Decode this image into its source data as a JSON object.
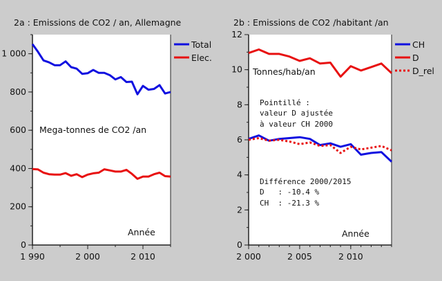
{
  "chart_data": [
    {
      "type": "line",
      "title": "2a : Emissions de CO2 / an, Allemagne",
      "ylabel": "Mega-tonnes de CO2 /an",
      "xlabel": "Année",
      "xlim": [
        1990,
        2015
      ],
      "ylim": [
        0,
        1100
      ],
      "xticks": [
        1990,
        2000,
        2010
      ],
      "xtick_labels": [
        "1 990",
        "2 000",
        "2 010"
      ],
      "yticks": [
        0,
        200,
        400,
        600,
        800,
        1000
      ],
      "ytick_labels": [
        "0",
        "200",
        "400",
        "600",
        "800",
        "1 000"
      ],
      "legend": "outside-right",
      "grid": false,
      "x": [
        1990,
        1991,
        1992,
        1993,
        1994,
        1995,
        1996,
        1997,
        1998,
        1999,
        2000,
        2001,
        2002,
        2003,
        2004,
        2005,
        2006,
        2007,
        2008,
        2009,
        2010,
        2011,
        2012,
        2013,
        2014,
        2015
      ],
      "series": [
        {
          "name": "Total",
          "color": "#1010e0",
          "style": "solid",
          "values": [
            1050,
            1010,
            965,
            955,
            940,
            940,
            960,
            930,
            922,
            895,
            898,
            915,
            900,
            900,
            888,
            866,
            878,
            852,
            854,
            788,
            832,
            812,
            816,
            836,
            792,
            800
          ]
        },
        {
          "name": "Elec.",
          "color": "#e81010",
          "style": "solid",
          "values": [
            397,
            395,
            378,
            370,
            368,
            368,
            376,
            362,
            370,
            355,
            368,
            375,
            378,
            396,
            390,
            384,
            384,
            393,
            372,
            346,
            358,
            358,
            370,
            378,
            360,
            358
          ]
        }
      ],
      "annotations": []
    },
    {
      "type": "line",
      "title": "2b : Emissions de CO2 /habitant /an",
      "ylabel": "Tonnes/hab/an",
      "xlabel": "Année",
      "xlim": [
        2000,
        2014
      ],
      "ylim": [
        0,
        12
      ],
      "xticks": [
        2000,
        2005,
        2010
      ],
      "xtick_labels": [
        "2 000",
        "2 005",
        "2 010"
      ],
      "yticks": [
        0,
        2,
        4,
        6,
        8,
        10,
        12
      ],
      "ytick_labels": [
        "0",
        "2",
        "4",
        "6",
        "8",
        "10",
        "12"
      ],
      "legend": "outside-right",
      "grid": false,
      "x": [
        2000,
        2001,
        2002,
        2003,
        2004,
        2005,
        2006,
        2007,
        2008,
        2009,
        2010,
        2011,
        2012,
        2013,
        2014
      ],
      "series": [
        {
          "name": "CH",
          "color": "#1010e0",
          "style": "solid",
          "values": [
            6.05,
            6.25,
            5.95,
            6.05,
            6.1,
            6.15,
            6.05,
            5.7,
            5.8,
            5.6,
            5.75,
            5.15,
            5.25,
            5.3,
            4.75
          ]
        },
        {
          "name": "D",
          "color": "#e81010",
          "style": "solid",
          "values": [
            10.95,
            11.15,
            10.9,
            10.9,
            10.75,
            10.5,
            10.65,
            10.35,
            10.4,
            9.6,
            10.2,
            9.95,
            10.15,
            10.35,
            9.8
          ]
        },
        {
          "name": "D_rel",
          "color": "#e81010",
          "style": "dotted",
          "values": [
            6.0,
            6.1,
            5.95,
            6.0,
            5.9,
            5.75,
            5.85,
            5.65,
            5.7,
            5.25,
            5.6,
            5.45,
            5.55,
            5.65,
            5.4
          ]
        }
      ],
      "annotations": [
        "Pointillé :",
        "valeur D ajustée",
        "à valeur CH 2000",
        "Différence 2000/2015",
        "D   : -10.4 %",
        "CH  : -21.3 %"
      ]
    }
  ]
}
